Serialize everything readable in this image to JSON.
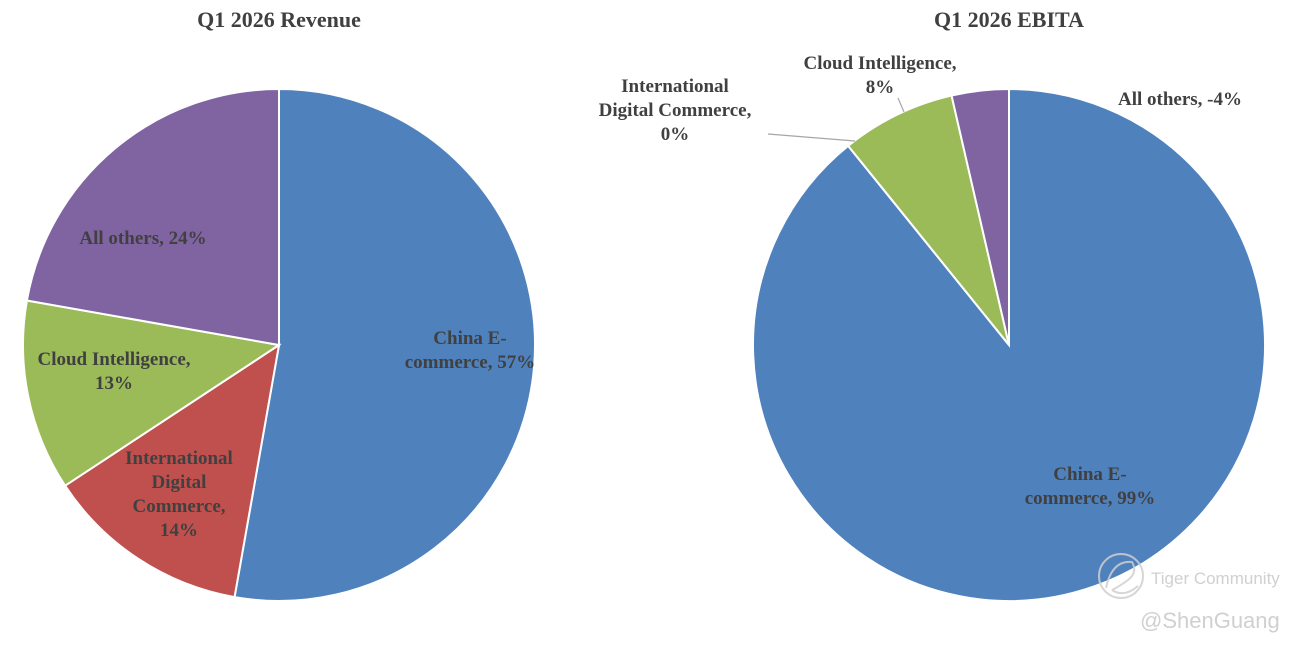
{
  "chart_data": [
    {
      "type": "pie",
      "title": "Q1 2026 Revenue",
      "slices": [
        {
          "name": "China E-commerce",
          "value": 57,
          "color": "#4f81bd",
          "label_lines": [
            "China E-",
            "commerce, 57%"
          ]
        },
        {
          "name": "International Digital Commerce",
          "value": 14,
          "color": "#c0504d",
          "label_lines": [
            "International",
            "Digital",
            "Commerce,",
            "14%"
          ]
        },
        {
          "name": "Cloud Intelligence",
          "value": 13,
          "color": "#9bbb59",
          "label_lines": [
            "Cloud Intelligence,",
            "13%"
          ]
        },
        {
          "name": "All others",
          "value": 24,
          "color": "#8064a2",
          "label_lines": [
            "All others, 24%"
          ]
        }
      ]
    },
    {
      "type": "pie",
      "title": "Q1 2026 EBITA",
      "slices": [
        {
          "name": "China E-commerce",
          "value": 99,
          "color": "#4f81bd",
          "label_lines": [
            "China E-",
            "commerce, 99%"
          ]
        },
        {
          "name": "International Digital Commerce",
          "value": 0,
          "color": "#c0504d",
          "label_lines": [
            "International",
            "Digital Commerce,",
            "0%"
          ]
        },
        {
          "name": "Cloud Intelligence",
          "value": 8,
          "color": "#9bbb59",
          "label_lines": [
            "Cloud Intelligence,",
            "8%"
          ]
        },
        {
          "name": "All others",
          "value": -4,
          "color": "#8064a2",
          "label_lines": [
            "All others, -4%"
          ]
        }
      ]
    }
  ],
  "watermark": {
    "brand": "Tiger Community",
    "handle": "@ShenGuang",
    "icon": "tiger-logo-icon"
  }
}
